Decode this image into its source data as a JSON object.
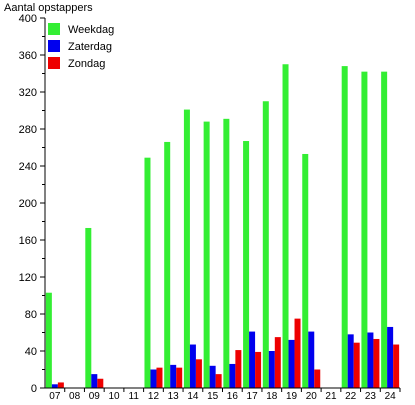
{
  "chart_data": {
    "type": "bar",
    "ylabel": "Aantal opstappers",
    "ylim": [
      0,
      400
    ],
    "yticks": [
      0,
      40,
      80,
      120,
      160,
      200,
      240,
      280,
      320,
      360,
      400
    ],
    "grid": false,
    "legend_position": "top-left",
    "categories": [
      "07",
      "08",
      "09",
      "10",
      "11",
      "12",
      "13",
      "14",
      "15",
      "16",
      "17",
      "18",
      "19",
      "20",
      "21",
      "22",
      "23",
      "24"
    ],
    "series": [
      {
        "name": "Weekdag",
        "color": "#33ee33",
        "values": [
          103,
          0,
          173,
          0,
          0,
          249,
          266,
          301,
          288,
          291,
          267,
          310,
          350,
          253,
          0,
          348,
          342,
          342
        ]
      },
      {
        "name": "Zaterdag",
        "color": "#0000ee",
        "values": [
          4,
          0,
          15,
          0,
          0,
          20,
          25,
          47,
          24,
          26,
          61,
          40,
          52,
          61,
          0,
          58,
          60,
          66
        ]
      },
      {
        "name": "Zondag",
        "color": "#ee0000",
        "values": [
          6,
          0,
          10,
          0,
          0,
          22,
          22,
          31,
          15,
          41,
          39,
          55,
          75,
          20,
          0,
          49,
          53,
          47
        ]
      }
    ]
  }
}
